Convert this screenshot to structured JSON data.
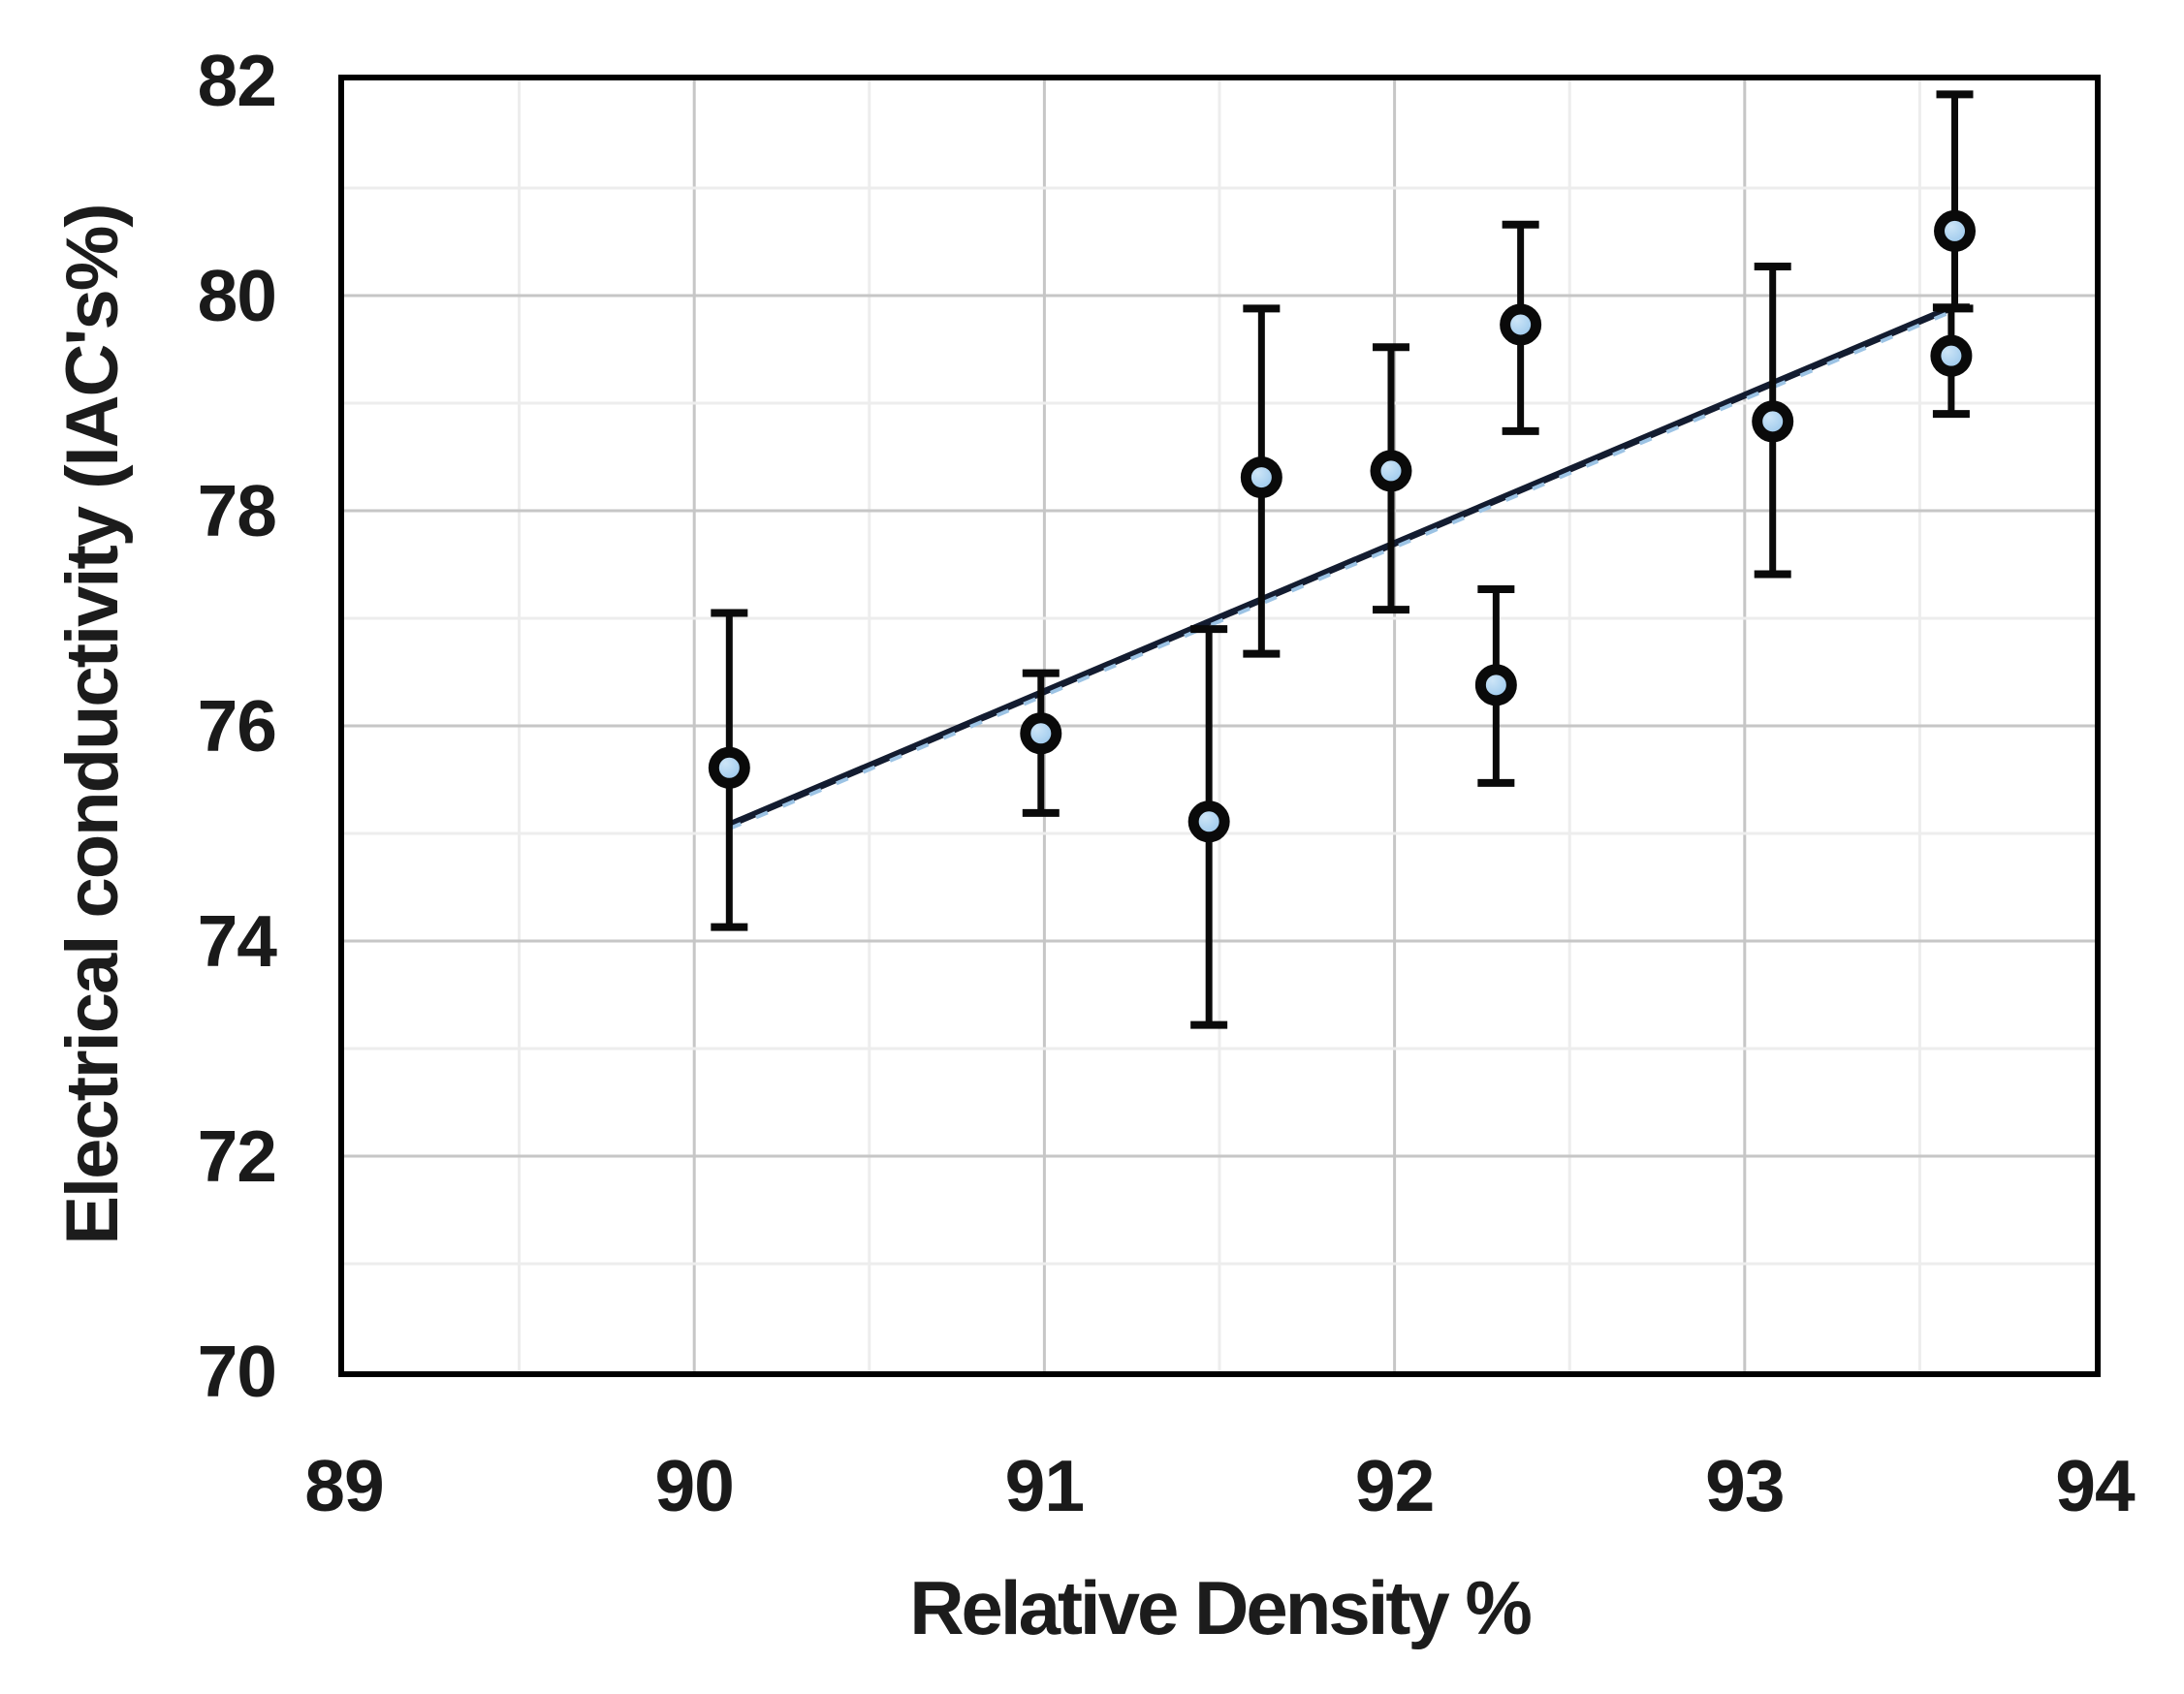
{
  "chart_data": {
    "type": "scatter",
    "title": "",
    "xlabel": "Relative Density %",
    "ylabel": "Electrical conductivity (IAC's%)",
    "xlim": [
      89,
      94
    ],
    "ylim": [
      70,
      82
    ],
    "xticks": [
      "89",
      "90",
      "91",
      "92",
      "93",
      "94"
    ],
    "yticks": [
      "70",
      "72",
      "74",
      "76",
      "78",
      "80",
      "82"
    ],
    "xtick_values": [
      89,
      90,
      91,
      92,
      93,
      94
    ],
    "ytick_values": [
      70,
      72,
      74,
      76,
      78,
      80,
      82
    ],
    "x_minor_step": 0.5,
    "y_minor_step": 1,
    "grid": "major and minor, both axes",
    "legend": "none",
    "points": [
      {
        "x": 90.1,
        "y": 75.61,
        "err_up": 1.44,
        "err_down": 1.48
      },
      {
        "x": 90.99,
        "y": 75.93,
        "err_up": 0.56,
        "err_down": 0.74
      },
      {
        "x": 91.47,
        "y": 75.11,
        "err_up": 1.79,
        "err_down": 1.89
      },
      {
        "x": 91.62,
        "y": 78.31,
        "err_up": 1.57,
        "err_down": 1.64
      },
      {
        "x": 91.99,
        "y": 78.37,
        "err_up": 1.15,
        "err_down": 1.29
      },
      {
        "x": 92.29,
        "y": 76.38,
        "err_up": 0.89,
        "err_down": 0.91
      },
      {
        "x": 92.36,
        "y": 79.73,
        "err_up": 0.93,
        "err_down": 0.99
      },
      {
        "x": 93.08,
        "y": 78.83,
        "err_up": 1.44,
        "err_down": 1.42
      },
      {
        "x": 93.59,
        "y": 79.44,
        "err_up": 0.45,
        "err_down": 0.54
      },
      {
        "x": 93.6,
        "y": 80.6,
        "err_up": 1.27,
        "err_down": 0.72
      }
    ],
    "trendline": {
      "x1": 90.1,
      "y1": 75.08,
      "x2": 93.6,
      "y2": 79.9,
      "style": "solid dark navy with light-blue dashed overlay"
    },
    "colors": {
      "marker_fill": "#a4cdee",
      "marker_fill_light": "#cde5f7",
      "marker_edge": "#0a0a0a",
      "error_bar": "#0a0a0a",
      "trend_solid": "#131c30",
      "trend_dash": "#9cc3e4",
      "grid_major": "#c6c6c6",
      "grid_minor": "#ededed",
      "axis_border": "#000000",
      "text": "#1a1a1a"
    }
  }
}
